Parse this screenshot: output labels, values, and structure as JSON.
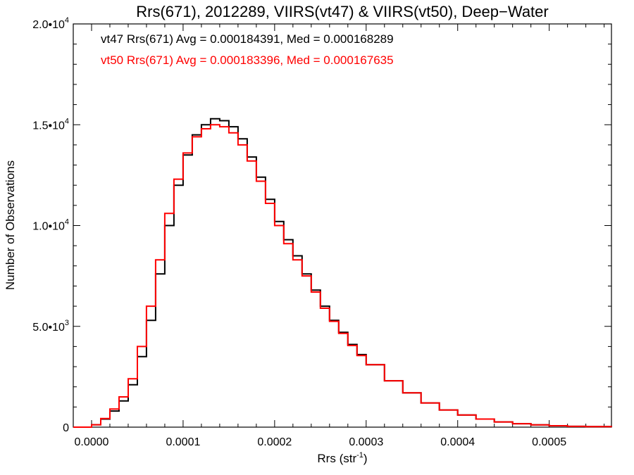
{
  "chart_data": {
    "type": "histogram-step",
    "title": "Rrs(671), 2012289, VIIRS(vt47) & VIIRS(vt50), Deep−Water",
    "xlabel": "Rrs (str",
    "xlabel_sup": "-1",
    "xlabel_close": ")",
    "ylabel": "Number of Observations",
    "xlim": [
      -2e-05,
      0.000568
    ],
    "ylim": [
      0,
      20000
    ],
    "grid": false,
    "x_ticks": [
      {
        "value": 0.0,
        "label": "0.0000"
      },
      {
        "value": 0.0001,
        "label": "0.0001"
      },
      {
        "value": 0.0002,
        "label": "0.0002"
      },
      {
        "value": 0.0003,
        "label": "0.0003"
      },
      {
        "value": 0.0004,
        "label": "0.0004"
      },
      {
        "value": 0.0005,
        "label": "0.0005"
      }
    ],
    "y_ticks": [
      {
        "value": 0,
        "label": "0",
        "exp": ""
      },
      {
        "value": 5000,
        "label": "5.0•10",
        "exp": "3"
      },
      {
        "value": 10000,
        "label": "1.0•10",
        "exp": "4"
      },
      {
        "value": 15000,
        "label": "1.5•10",
        "exp": "4"
      },
      {
        "value": 20000,
        "label": "2.0•10",
        "exp": "4"
      }
    ],
    "annotations": [
      {
        "text": "vt47 Rrs(671) Avg = 0.000184391, Med = 0.000168289",
        "color": "#000000"
      },
      {
        "text": "vt50 Rrs(671) Avg = 0.000183396, Med = 0.000167635",
        "color": "#ff0000"
      }
    ],
    "series": [
      {
        "name": "vt47",
        "color": "#000000",
        "points": [
          [
            -2e-05,
            0
          ],
          [
            0.0,
            120
          ],
          [
            1e-05,
            400
          ],
          [
            2e-05,
            800
          ],
          [
            3e-05,
            1300
          ],
          [
            4e-05,
            2100
          ],
          [
            5e-05,
            3500
          ],
          [
            6e-05,
            5300
          ],
          [
            7e-05,
            7600
          ],
          [
            8e-05,
            10000
          ],
          [
            9e-05,
            12000
          ],
          [
            0.0001,
            13500
          ],
          [
            0.00011,
            14500
          ],
          [
            0.00012,
            15000
          ],
          [
            0.00013,
            15300
          ],
          [
            0.00014,
            15200
          ],
          [
            0.00015,
            14900
          ],
          [
            0.00016,
            14300
          ],
          [
            0.00017,
            13400
          ],
          [
            0.00018,
            12400
          ],
          [
            0.00019,
            11300
          ],
          [
            0.0002,
            10200
          ],
          [
            0.00021,
            9300
          ],
          [
            0.00022,
            8500
          ],
          [
            0.00023,
            7600
          ],
          [
            0.00024,
            6800
          ],
          [
            0.00025,
            6000
          ],
          [
            0.00026,
            5300
          ],
          [
            0.00027,
            4700
          ],
          [
            0.00028,
            4100
          ],
          [
            0.00029,
            3600
          ],
          [
            0.0003,
            3100
          ],
          [
            0.00032,
            2300
          ],
          [
            0.00034,
            1700
          ],
          [
            0.00036,
            1200
          ],
          [
            0.00038,
            850
          ],
          [
            0.0004,
            600
          ],
          [
            0.00042,
            400
          ],
          [
            0.00044,
            260
          ],
          [
            0.00046,
            170
          ],
          [
            0.00048,
            110
          ],
          [
            0.0005,
            70
          ],
          [
            0.00052,
            40
          ],
          [
            0.00054,
            25
          ],
          [
            0.000568,
            10
          ]
        ]
      },
      {
        "name": "vt50",
        "color": "#ff0000",
        "points": [
          [
            -2e-05,
            0
          ],
          [
            0.0,
            120
          ],
          [
            1e-05,
            430
          ],
          [
            2e-05,
            900
          ],
          [
            3e-05,
            1500
          ],
          [
            4e-05,
            2400
          ],
          [
            5e-05,
            4000
          ],
          [
            6e-05,
            6000
          ],
          [
            7e-05,
            8300
          ],
          [
            8e-05,
            10600
          ],
          [
            9e-05,
            12300
          ],
          [
            0.0001,
            13600
          ],
          [
            0.00011,
            14400
          ],
          [
            0.00012,
            14800
          ],
          [
            0.00013,
            15000
          ],
          [
            0.00014,
            14900
          ],
          [
            0.00015,
            14600
          ],
          [
            0.00016,
            14000
          ],
          [
            0.00017,
            13200
          ],
          [
            0.00018,
            12200
          ],
          [
            0.00019,
            11100
          ],
          [
            0.0002,
            10000
          ],
          [
            0.00021,
            9100
          ],
          [
            0.00022,
            8300
          ],
          [
            0.00023,
            7500
          ],
          [
            0.00024,
            6700
          ],
          [
            0.00025,
            5900
          ],
          [
            0.00026,
            5250
          ],
          [
            0.00027,
            4650
          ],
          [
            0.00028,
            4050
          ],
          [
            0.00029,
            3550
          ],
          [
            0.0003,
            3100
          ],
          [
            0.00032,
            2300
          ],
          [
            0.00034,
            1700
          ],
          [
            0.00036,
            1200
          ],
          [
            0.00038,
            850
          ],
          [
            0.0004,
            600
          ],
          [
            0.00042,
            400
          ],
          [
            0.00044,
            260
          ],
          [
            0.00046,
            170
          ],
          [
            0.00048,
            110
          ],
          [
            0.0005,
            70
          ],
          [
            0.00052,
            40
          ],
          [
            0.00054,
            25
          ],
          [
            0.000568,
            10
          ]
        ]
      }
    ]
  }
}
